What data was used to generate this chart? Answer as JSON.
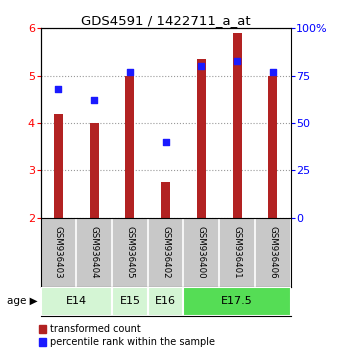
{
  "title": "GDS4591 / 1422711_a_at",
  "samples": [
    "GSM936403",
    "GSM936404",
    "GSM936405",
    "GSM936402",
    "GSM936400",
    "GSM936401",
    "GSM936406"
  ],
  "red_values": [
    4.2,
    4.0,
    5.0,
    2.75,
    5.35,
    5.9,
    5.0
  ],
  "blue_values": [
    68,
    62,
    77,
    40,
    80,
    83,
    77
  ],
  "ylim_left": [
    2,
    6
  ],
  "ylim_right": [
    0,
    100
  ],
  "yticks_left": [
    2,
    3,
    4,
    5,
    6
  ],
  "yticks_right": [
    0,
    25,
    50,
    75,
    100
  ],
  "ytick_labels_right": [
    "0",
    "25",
    "50",
    "75",
    "100%"
  ],
  "bar_color": "#b22222",
  "dot_color": "#1a1aff",
  "bar_bottom": 2.0,
  "bar_width": 0.25,
  "age_groups": [
    {
      "label": "E14",
      "start": 0,
      "end": 2,
      "color": "#d4f5d4"
    },
    {
      "label": "E15",
      "start": 2,
      "end": 3,
      "color": "#d4f5d4"
    },
    {
      "label": "E16",
      "start": 3,
      "end": 4,
      "color": "#d4f5d4"
    },
    {
      "label": "E17.5",
      "start": 4,
      "end": 7,
      "color": "#55dd55"
    }
  ],
  "legend_red_label": "transformed count",
  "legend_blue_label": "percentile rank within the sample",
  "xlabel_age": "age",
  "sample_bg_color": "#c8c8c8",
  "grid_color": "#999999",
  "grid_style": ":"
}
